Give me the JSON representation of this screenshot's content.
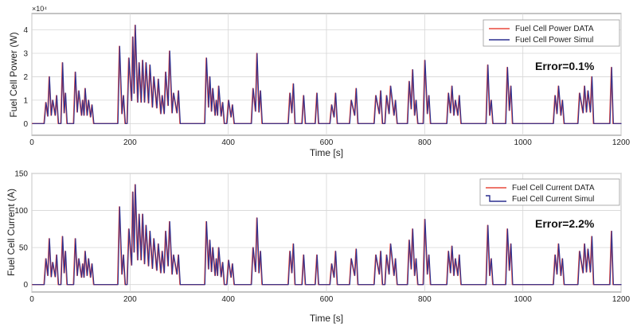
{
  "chart_data": [
    {
      "type": "line",
      "xlabel": "Time [s]",
      "ylabel": "Fuel Cell Power (W)",
      "y_exponent": "×10⁴",
      "xlim": [
        0,
        1200
      ],
      "ylim": [
        -0.5,
        4.7
      ],
      "x_ticks": [
        0,
        200,
        400,
        600,
        800,
        1000,
        1200
      ],
      "y_ticks": [
        0,
        1,
        2,
        3,
        4
      ],
      "grid": true,
      "legend_position": "top-right",
      "annotation": "Error=0.1%",
      "series": [
        {
          "name": "Fuel Cell Power DATA",
          "color": "#e8483c"
        },
        {
          "name": "Fuel Cell Power Simul",
          "color": "#2b2f8f"
        }
      ],
      "peaks": [
        [
          28,
          0.9
        ],
        [
          35,
          2.0
        ],
        [
          42,
          1.0
        ],
        [
          50,
          1.2
        ],
        [
          62,
          2.6
        ],
        [
          68,
          1.3
        ],
        [
          88,
          2.2
        ],
        [
          95,
          1.4
        ],
        [
          103,
          1.0
        ],
        [
          108,
          1.5
        ],
        [
          115,
          1.0
        ],
        [
          122,
          0.8
        ],
        [
          178,
          3.3
        ],
        [
          186,
          1.2
        ],
        [
          197,
          2.8
        ],
        [
          205,
          3.7
        ],
        [
          210,
          4.2
        ],
        [
          218,
          2.6
        ],
        [
          225,
          2.7
        ],
        [
          232,
          2.6
        ],
        [
          240,
          2.5
        ],
        [
          248,
          2.0
        ],
        [
          257,
          1.9
        ],
        [
          265,
          1.2
        ],
        [
          272,
          2.2
        ],
        [
          280,
          3.1
        ],
        [
          288,
          1.3
        ],
        [
          298,
          1.4
        ],
        [
          355,
          2.8
        ],
        [
          362,
          2.0
        ],
        [
          368,
          1.5
        ],
        [
          375,
          1.0
        ],
        [
          380,
          1.6
        ],
        [
          388,
          0.9
        ],
        [
          400,
          1.0
        ],
        [
          408,
          0.8
        ],
        [
          450,
          1.5
        ],
        [
          458,
          3.0
        ],
        [
          465,
          1.4
        ],
        [
          525,
          1.3
        ],
        [
          532,
          1.7
        ],
        [
          553,
          1.2
        ],
        [
          580,
          1.3
        ],
        [
          610,
          0.8
        ],
        [
          618,
          1.3
        ],
        [
          650,
          1.0
        ],
        [
          660,
          1.5
        ],
        [
          700,
          1.2
        ],
        [
          710,
          1.4
        ],
        [
          722,
          1.2
        ],
        [
          730,
          1.6
        ],
        [
          740,
          1.0
        ],
        [
          768,
          1.8
        ],
        [
          775,
          2.3
        ],
        [
          782,
          1.0
        ],
        [
          800,
          2.7
        ],
        [
          808,
          1.2
        ],
        [
          848,
          1.3
        ],
        [
          855,
          1.6
        ],
        [
          862,
          1.0
        ],
        [
          870,
          1.2
        ],
        [
          928,
          2.5
        ],
        [
          935,
          1.0
        ],
        [
          968,
          2.4
        ],
        [
          975,
          1.6
        ],
        [
          1065,
          1.2
        ],
        [
          1072,
          1.6
        ],
        [
          1080,
          1.0
        ],
        [
          1115,
          1.3
        ],
        [
          1125,
          1.6
        ],
        [
          1132,
          1.4
        ],
        [
          1140,
          2.0
        ],
        [
          1180,
          2.4
        ]
      ]
    },
    {
      "type": "line",
      "xlabel": "Time [s]",
      "ylabel": "Fuel Cell Current (A)",
      "xlim": [
        0,
        1200
      ],
      "ylim": [
        -10,
        150
      ],
      "x_ticks": [
        0,
        200,
        400,
        600,
        800,
        1000,
        1200
      ],
      "y_ticks": [
        0,
        50,
        100,
        150
      ],
      "grid": true,
      "legend_position": "top-right",
      "annotation": "Error=2.2%",
      "series": [
        {
          "name": "Fuel Cell Current DATA",
          "color": "#e8483c"
        },
        {
          "name": "Fuel Cell Current Simul",
          "color": "#2b2f8f"
        }
      ],
      "peaks": [
        [
          28,
          35
        ],
        [
          35,
          62
        ],
        [
          42,
          30
        ],
        [
          50,
          40
        ],
        [
          62,
          65
        ],
        [
          68,
          45
        ],
        [
          88,
          62
        ],
        [
          95,
          35
        ],
        [
          103,
          28
        ],
        [
          108,
          45
        ],
        [
          115,
          35
        ],
        [
          122,
          28
        ],
        [
          178,
          105
        ],
        [
          186,
          40
        ],
        [
          197,
          75
        ],
        [
          205,
          125
        ],
        [
          210,
          135
        ],
        [
          218,
          95
        ],
        [
          225,
          95
        ],
        [
          232,
          80
        ],
        [
          240,
          72
        ],
        [
          248,
          62
        ],
        [
          257,
          55
        ],
        [
          265,
          45
        ],
        [
          272,
          72
        ],
        [
          280,
          85
        ],
        [
          288,
          40
        ],
        [
          298,
          40
        ],
        [
          355,
          85
        ],
        [
          362,
          60
        ],
        [
          368,
          50
        ],
        [
          375,
          35
        ],
        [
          380,
          50
        ],
        [
          388,
          30
        ],
        [
          400,
          33
        ],
        [
          408,
          28
        ],
        [
          450,
          50
        ],
        [
          458,
          90
        ],
        [
          465,
          45
        ],
        [
          525,
          45
        ],
        [
          532,
          55
        ],
        [
          553,
          40
        ],
        [
          580,
          40
        ],
        [
          610,
          28
        ],
        [
          618,
          45
        ],
        [
          650,
          35
        ],
        [
          660,
          48
        ],
        [
          700,
          40
        ],
        [
          710,
          45
        ],
        [
          722,
          40
        ],
        [
          730,
          55
        ],
        [
          740,
          35
        ],
        [
          768,
          60
        ],
        [
          775,
          75
        ],
        [
          782,
          35
        ],
        [
          800,
          88
        ],
        [
          808,
          40
        ],
        [
          848,
          45
        ],
        [
          855,
          52
        ],
        [
          862,
          35
        ],
        [
          870,
          40
        ],
        [
          928,
          80
        ],
        [
          935,
          35
        ],
        [
          968,
          75
        ],
        [
          975,
          55
        ],
        [
          1065,
          40
        ],
        [
          1072,
          55
        ],
        [
          1080,
          35
        ],
        [
          1115,
          45
        ],
        [
          1125,
          55
        ],
        [
          1132,
          48
        ],
        [
          1140,
          65
        ],
        [
          1180,
          72
        ]
      ]
    }
  ]
}
